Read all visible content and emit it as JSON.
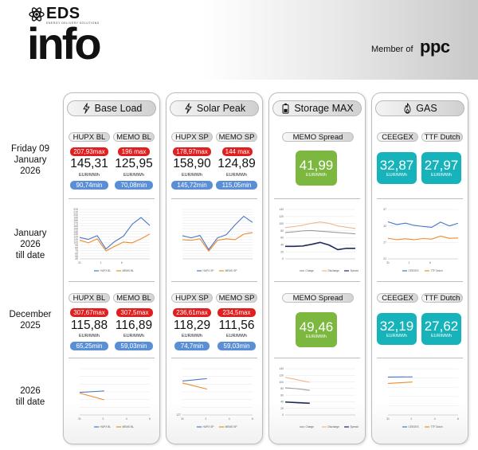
{
  "header": {
    "brand": "EDS",
    "brand_sub": "ENERGY DELIVERY SOLUTIONS",
    "title": "info",
    "member_label": "Member of",
    "member_logo": "ppc"
  },
  "row_labels": {
    "day": [
      "Friday 09",
      "January",
      "2026"
    ],
    "month": [
      "January",
      "2026",
      "till date"
    ],
    "prev_month": [
      "December",
      "2025"
    ],
    "year": [
      "2026",
      "till date"
    ]
  },
  "columns": {
    "base": {
      "title": "Base Load",
      "icon": "lightning-icon",
      "day": {
        "left": {
          "label": "HUPX BL",
          "max": "207,93max",
          "value": "145,31",
          "unit": "EUR/MWh",
          "min": "90,74min"
        },
        "right": {
          "label": "MEMO BL",
          "max": "196 max",
          "value": "125,95",
          "unit": "EUR/MWh",
          "min": "70,08min"
        }
      },
      "prev": {
        "left": {
          "label": "HUPX BL",
          "max": "307,67max",
          "value": "115,88",
          "unit": "EUR/MWh",
          "min": "65,25min"
        },
        "right": {
          "label": "MEMO BL",
          "max": "307,5max",
          "value": "116,89",
          "unit": "EUR/MWh",
          "min": "59,03min"
        }
      }
    },
    "solar": {
      "title": "Solar Peak",
      "icon": "lightning-icon",
      "day": {
        "left": {
          "label": "HUPX SP",
          "max": "178,97max",
          "value": "158,90",
          "unit": "EUR/MWh",
          "min": "145,72min"
        },
        "right": {
          "label": "MEMO SP",
          "max": "144 max",
          "value": "124,89",
          "unit": "EUR/MWh",
          "min": "115,05min"
        }
      },
      "prev": {
        "left": {
          "label": "HUPX SP",
          "max": "236,61max",
          "value": "118,29",
          "unit": "EUR/MWh",
          "min": "74,7min"
        },
        "right": {
          "label": "MEMO SP",
          "max": "234,5max",
          "value": "111,56",
          "unit": "EUR/MWh",
          "min": "59,03min"
        }
      }
    },
    "storage": {
      "title": "Storage MAX",
      "icon": "battery-icon",
      "day": {
        "label": "MEMO Spread",
        "value": "41,99",
        "unit": "EUR/MWh"
      },
      "prev": {
        "label": "MEMO Spread",
        "value": "49,46",
        "unit": "EUR/MWh"
      }
    },
    "gas": {
      "title": "GAS",
      "icon": "flame-icon",
      "day": {
        "left": {
          "label": "CEEGEX",
          "value": "32,87",
          "unit": "EUR/MWh"
        },
        "right": {
          "label": "TTF Dutch",
          "value": "27,97",
          "unit": "EUR/MWh"
        }
      },
      "prev": {
        "left": {
          "label": "CEEGEX",
          "value": "32,19",
          "unit": "EUR/MWh"
        },
        "right": {
          "label": "TTF Dutch",
          "value": "27,62",
          "unit": "EUR/MWh"
        }
      }
    }
  },
  "colors": {
    "red": "#e02020",
    "blue": "#5a8fd6",
    "green": "#7cb83f",
    "teal": "#16b3bb",
    "series_blue": "#4a77c4",
    "series_orange": "#ee8a2c",
    "series_navy": "#1e2a5a",
    "series_grey": "#9a9a9a"
  },
  "chart_data": [
    {
      "id": "base-jan",
      "type": "line",
      "x": [
        1,
        2,
        3,
        4,
        5,
        6,
        7,
        8,
        9
      ],
      "x_ticks": [
        "31",
        "1",
        "6"
      ],
      "y_ticks": [
        "45",
        "55",
        "65",
        "75",
        "85",
        "95",
        "105",
        "115",
        "125",
        "135",
        "145",
        "155",
        "165",
        "175",
        "185",
        "195",
        "205",
        "215",
        "225"
      ],
      "ylim": [
        45,
        230
      ],
      "series": [
        {
          "name": "HUPX BL",
          "values": [
            125,
            118,
            132,
            82,
            110,
            130,
            175,
            200,
            170
          ]
        },
        {
          "name": "MEMO BL",
          "values": [
            115,
            105,
            120,
            75,
            92,
            108,
            105,
            120,
            138
          ]
        }
      ]
    },
    {
      "id": "solar-jan",
      "type": "line",
      "x": [
        1,
        2,
        3,
        4,
        5,
        6,
        7,
        8,
        9
      ],
      "y_ticks": [
        "",
        "",
        "",
        "",
        "",
        "",
        "",
        "",
        "",
        "",
        "",
        "",
        "",
        "",
        "",
        "",
        "",
        "",
        ""
      ],
      "ylim": [
        40,
        200
      ],
      "series": [
        {
          "name": "HUPX SP",
          "values": [
            115,
            108,
            116,
            70,
            108,
            118,
            150,
            178,
            158
          ]
        },
        {
          "name": "MEMO SP",
          "values": [
            102,
            100,
            105,
            65,
            100,
            105,
            102,
            120,
            125
          ]
        }
      ]
    },
    {
      "id": "storage-jan",
      "type": "line",
      "x": [
        1,
        2,
        3,
        4,
        5,
        6,
        7,
        8,
        9
      ],
      "y_ticks": [
        "0",
        "20",
        "40",
        "60",
        "80",
        "100",
        "120",
        "140"
      ],
      "ylim": [
        0,
        150
      ],
      "series": [
        {
          "name": "Charge",
          "values": [
            80,
            82,
            85,
            86,
            84,
            82,
            80,
            78,
            76
          ]
        },
        {
          "name": "Discharge",
          "values": [
            95,
            98,
            102,
            108,
            112,
            108,
            100,
            96,
            92
          ]
        },
        {
          "name": "Spread",
          "values": [
            38,
            38,
            39,
            44,
            50,
            42,
            28,
            32,
            32
          ]
        }
      ]
    },
    {
      "id": "gas-jan",
      "type": "line",
      "x": [
        1,
        2,
        3,
        4,
        5,
        6,
        7,
        8,
        9
      ],
      "x_ticks": [
        "31",
        "1",
        "6"
      ],
      "y_ticks": [
        "22",
        "27",
        "32",
        "37"
      ],
      "ylim": [
        20,
        38
      ],
      "series": [
        {
          "name": "CEEGEX",
          "values": [
            33.5,
            32.5,
            33,
            32.2,
            31.8,
            31.5,
            33.4,
            32,
            33
          ]
        },
        {
          "name": "TTF Dutch",
          "values": [
            27.5,
            27,
            27.3,
            27,
            27.4,
            27.2,
            28.3,
            27.5,
            27.6
          ]
        }
      ]
    },
    {
      "id": "base-2026",
      "type": "line",
      "x": [
        1,
        2
      ],
      "x_ticks": [
        "31",
        "2",
        "4",
        "6"
      ],
      "y_ticks": [
        "",
        "",
        "",
        "",
        "",
        "",
        ""
      ],
      "ylim": [
        0,
        250
      ],
      "series": [
        {
          "name": "HUPX BL",
          "values": [
            122,
            130
          ]
        },
        {
          "name": "MEMO BL",
          "values": [
            118,
            82
          ]
        }
      ]
    },
    {
      "id": "solar-2026",
      "type": "line",
      "x": [
        1,
        2
      ],
      "x_ticks": [
        "31",
        "2",
        "4",
        "6"
      ],
      "y_ticks": [
        "127",
        "",
        "",
        "",
        "",
        "",
        ""
      ],
      "ylim": [
        0,
        150
      ],
      "series": [
        {
          "name": "HUPX SP",
          "values": [
            110,
            118
          ]
        },
        {
          "name": "MEMO SP",
          "values": [
            104,
            84
          ]
        }
      ]
    },
    {
      "id": "storage-2026",
      "type": "line",
      "x": [
        1,
        2,
        3
      ],
      "y_ticks": [
        "0",
        "20",
        "40",
        "60",
        "80",
        "100",
        "120",
        "140"
      ],
      "ylim": [
        0,
        150
      ],
      "series": [
        {
          "name": "Charge",
          "values": [
            88,
            85,
            80
          ]
        },
        {
          "name": "Discharge",
          "values": [
            122,
            114,
            106
          ]
        },
        {
          "name": "Spread",
          "values": [
            42,
            40,
            38
          ]
        }
      ]
    },
    {
      "id": "gas-2026",
      "type": "line",
      "x": [
        1,
        2
      ],
      "x_ticks": [
        "31",
        "2",
        "4",
        "6"
      ],
      "y_ticks": [
        "",
        "",
        "",
        "",
        "",
        ""
      ],
      "ylim": [
        0,
        40
      ],
      "series": [
        {
          "name": "CEEGEX",
          "values": [
            32.8,
            33
          ]
        },
        {
          "name": "TTF Dutch",
          "values": [
            27.3,
            28.5
          ]
        }
      ]
    }
  ]
}
